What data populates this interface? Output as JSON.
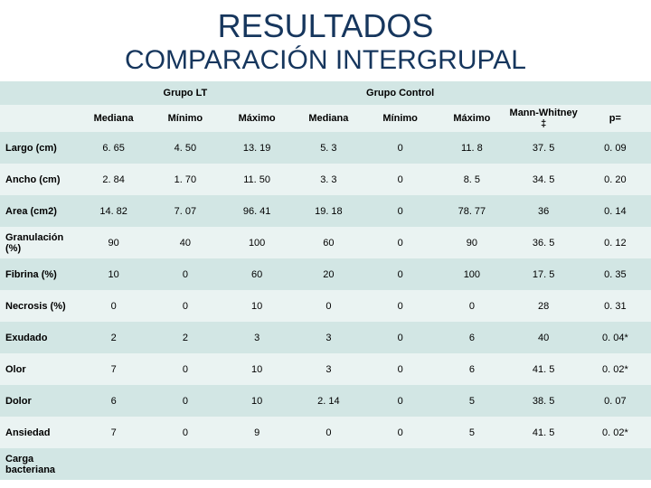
{
  "titles": {
    "main": "RESULTADOS",
    "sub": "COMPARACIÓN INTERGRUPAL"
  },
  "group_headers": {
    "lt": "Grupo LT",
    "control": "Grupo Control"
  },
  "subheaders": {
    "mediana": "Mediana",
    "minimo": "Mínimo",
    "maximo": "Máximo",
    "mw": "Mann-Whitney ‡",
    "p": "p="
  },
  "rows": [
    {
      "label": "Largo (cm)",
      "c": [
        "6. 65",
        "4. 50",
        "13. 19",
        "5. 3",
        "0",
        "11. 8",
        "37. 5",
        "0. 09"
      ]
    },
    {
      "label": "Ancho (cm)",
      "c": [
        "2. 84",
        "1. 70",
        "11. 50",
        "3. 3",
        "0",
        "8. 5",
        "34. 5",
        "0. 20"
      ]
    },
    {
      "label": "Area (cm2)",
      "c": [
        "14. 82",
        "7. 07",
        "96. 41",
        "19. 18",
        "0",
        "78. 77",
        "36",
        "0. 14"
      ]
    },
    {
      "label": "Granulación (%)",
      "c": [
        "90",
        "40",
        "100",
        "60",
        "0",
        "90",
        "36. 5",
        "0. 12"
      ]
    },
    {
      "label": "Fibrina (%)",
      "c": [
        "10",
        "0",
        "60",
        "20",
        "0",
        "100",
        "17. 5",
        "0. 35"
      ]
    },
    {
      "label": "Necrosis (%)",
      "c": [
        "0",
        "0",
        "10",
        "0",
        "0",
        "0",
        "28",
        "0. 31"
      ]
    },
    {
      "label": "Exudado",
      "c": [
        "2",
        "2",
        "3",
        "3",
        "0",
        "6",
        "40",
        "0. 04*"
      ]
    },
    {
      "label": "Olor",
      "c": [
        "7",
        "0",
        "10",
        "3",
        "0",
        "6",
        "41. 5",
        "0. 02*"
      ]
    },
    {
      "label": "Dolor",
      "c": [
        "6",
        "0",
        "10",
        "2. 14",
        "0",
        "5",
        "38. 5",
        "0. 07"
      ]
    },
    {
      "label": "Ansiedad",
      "c": [
        "7",
        "0",
        "9",
        "0",
        "0",
        "5",
        "41. 5",
        "0. 02*"
      ]
    },
    {
      "label": "Carga bacteriana",
      "c": [
        "",
        "",
        "",
        "",
        "",
        "",
        "",
        ""
      ]
    }
  ],
  "colors": {
    "header_band": "#d2e6e4",
    "alt_band": "#eaf3f2",
    "title_color": "#16365d"
  }
}
